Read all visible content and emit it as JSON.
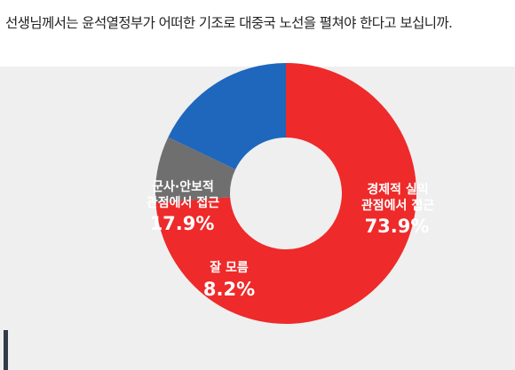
{
  "question": "선생님께서는 윤석열정부가 어떠한 기조로 대중국 노선을 펼쳐야 한다고 보십니까.",
  "chart_data": {
    "type": "pie",
    "donut": true,
    "title": "",
    "slices": [
      {
        "label_line1": "경제적 실익",
        "label_line2": "관점에서 접근",
        "value": 73.9,
        "value_text": "73.9%",
        "color": "#ee2a2a"
      },
      {
        "label_line1": "잘 모름",
        "label_line2": "",
        "value": 8.2,
        "value_text": "8.2%",
        "color": "#6f6f6f"
      },
      {
        "label_line1": "군사·안보적",
        "label_line2": "관점에서 접근",
        "value": 17.9,
        "value_text": "17.9%",
        "color": "#1e67bd"
      }
    ]
  }
}
